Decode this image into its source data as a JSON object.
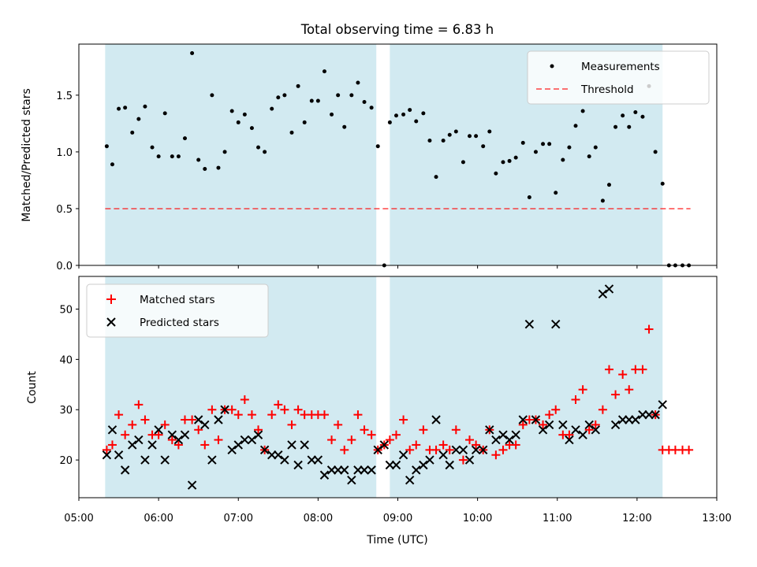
{
  "chart_data": [
    {
      "type": "scatter",
      "title": "Total observing time = 6.83 h",
      "ylabel": "Matched/Predicted stars",
      "xlim": [
        5.0,
        13.0
      ],
      "ylim": [
        0.0,
        1.95
      ],
      "yticks": [
        "0.0",
        "0.5",
        "1.0",
        "1.5"
      ],
      "ytick_values": [
        0.0,
        0.5,
        1.0,
        1.5
      ],
      "shaded_intervals": [
        [
          5.33,
          8.73
        ],
        [
          8.9,
          12.32
        ]
      ],
      "shade_color": "#add8e6",
      "legend": {
        "position": "upper right",
        "entries": [
          "Measurements",
          "Threshold"
        ]
      },
      "threshold": {
        "name": "Threshold",
        "value": 0.5,
        "x_range": [
          5.33,
          12.67
        ],
        "color": "#ff0000"
      },
      "series": [
        {
          "name": "Measurements",
          "marker": "dot",
          "color": "#000000",
          "x": [
            5.35,
            5.42,
            5.5,
            5.58,
            5.67,
            5.75,
            5.83,
            5.92,
            6.0,
            6.08,
            6.17,
            6.25,
            6.33,
            6.42,
            6.5,
            6.58,
            6.67,
            6.75,
            6.83,
            6.92,
            7.0,
            7.08,
            7.17,
            7.25,
            7.33,
            7.42,
            7.5,
            7.58,
            7.67,
            7.75,
            7.83,
            7.92,
            8.0,
            8.08,
            8.17,
            8.25,
            8.33,
            8.42,
            8.5,
            8.58,
            8.67,
            8.75,
            8.83,
            8.9,
            8.98,
            9.07,
            9.15,
            9.23,
            9.32,
            9.4,
            9.48,
            9.57,
            9.65,
            9.73,
            9.82,
            9.9,
            9.98,
            10.07,
            10.15,
            10.23,
            10.32,
            10.4,
            10.48,
            10.57,
            10.65,
            10.73,
            10.82,
            10.9,
            10.98,
            11.07,
            11.15,
            11.23,
            11.32,
            11.4,
            11.48,
            11.57,
            11.65,
            11.73,
            11.82,
            11.9,
            11.98,
            12.07,
            12.15,
            12.23,
            12.32,
            12.4,
            12.48,
            12.57,
            12.65
          ],
          "y": [
            1.05,
            0.89,
            1.38,
            1.39,
            1.17,
            1.29,
            1.4,
            1.04,
            0.96,
            1.34,
            0.96,
            0.96,
            1.12,
            1.87,
            0.93,
            0.85,
            1.5,
            0.86,
            1.0,
            1.36,
            1.26,
            1.33,
            1.21,
            1.04,
            1.0,
            1.38,
            1.48,
            1.5,
            1.17,
            1.58,
            1.26,
            1.45,
            1.45,
            1.71,
            1.33,
            1.5,
            1.22,
            1.5,
            1.61,
            1.44,
            1.39,
            1.05,
            0.0,
            1.26,
            1.32,
            1.33,
            1.37,
            1.27,
            1.34,
            1.1,
            0.78,
            1.1,
            1.15,
            1.18,
            0.91,
            1.14,
            1.14,
            1.05,
            1.18,
            0.81,
            0.91,
            0.92,
            0.95,
            1.08,
            0.6,
            1.0,
            1.07,
            1.07,
            0.64,
            0.93,
            1.04,
            1.23,
            1.36,
            0.96,
            1.04,
            0.57,
            0.71,
            1.22,
            1.32,
            1.22,
            1.35,
            1.31,
            1.58,
            1.0,
            0.72,
            0.0,
            0.0,
            0.0,
            0.0
          ]
        }
      ]
    },
    {
      "type": "scatter",
      "xlabel": "Time (UTC)",
      "ylabel": "Count",
      "xlim": [
        5.0,
        13.0
      ],
      "ylim": [
        12.5,
        56.5
      ],
      "yticks": [
        "20",
        "30",
        "40",
        "50"
      ],
      "ytick_values": [
        20,
        30,
        40,
        50
      ],
      "xticks": [
        "05:00",
        "06:00",
        "07:00",
        "08:00",
        "09:00",
        "10:00",
        "11:00",
        "12:00",
        "13:00"
      ],
      "xtick_values": [
        5,
        6,
        7,
        8,
        9,
        10,
        11,
        12,
        13
      ],
      "shaded_intervals": [
        [
          5.33,
          8.73
        ],
        [
          8.9,
          12.32
        ]
      ],
      "shade_color": "#add8e6",
      "legend": {
        "position": "upper left",
        "entries": [
          "Matched stars",
          "Predicted stars"
        ]
      },
      "series": [
        {
          "name": "Matched stars",
          "marker": "plus",
          "color": "#ff0000",
          "x": [
            5.35,
            5.42,
            5.5,
            5.58,
            5.67,
            5.75,
            5.83,
            5.92,
            6.0,
            6.08,
            6.17,
            6.25,
            6.33,
            6.42,
            6.5,
            6.58,
            6.67,
            6.75,
            6.83,
            6.92,
            7.0,
            7.08,
            7.17,
            7.25,
            7.33,
            7.42,
            7.5,
            7.58,
            7.67,
            7.75,
            7.83,
            7.92,
            8.0,
            8.08,
            8.17,
            8.25,
            8.33,
            8.42,
            8.5,
            8.58,
            8.67,
            8.75,
            8.83,
            8.9,
            8.98,
            9.07,
            9.15,
            9.23,
            9.32,
            9.4,
            9.48,
            9.57,
            9.65,
            9.73,
            9.82,
            9.9,
            9.98,
            10.07,
            10.15,
            10.23,
            10.32,
            10.4,
            10.48,
            10.57,
            10.65,
            10.73,
            10.82,
            10.9,
            10.98,
            11.07,
            11.15,
            11.23,
            11.32,
            11.4,
            11.48,
            11.57,
            11.65,
            11.73,
            11.82,
            11.9,
            11.98,
            12.07,
            12.15,
            12.23,
            12.32,
            12.4,
            12.48,
            12.57,
            12.65
          ],
          "y": [
            22,
            23,
            29,
            25,
            27,
            31,
            28,
            25,
            25,
            27,
            24,
            23,
            28,
            28,
            26,
            23,
            30,
            24,
            30,
            30,
            29,
            32,
            29,
            26,
            22,
            29,
            31,
            30,
            27,
            30,
            29,
            29,
            29,
            29,
            24,
            27,
            22,
            24,
            29,
            26,
            25,
            22,
            23,
            24,
            25,
            28,
            22,
            23,
            26,
            22,
            22,
            23,
            22,
            26,
            20,
            24,
            23,
            22,
            26,
            21,
            22,
            23,
            23,
            27,
            28,
            28,
            27,
            29,
            30,
            25,
            25,
            32,
            34,
            26,
            27,
            30,
            38,
            33,
            37,
            34,
            38,
            38,
            46,
            29,
            22,
            22,
            22,
            22,
            22
          ]
        },
        {
          "name": "Predicted stars",
          "marker": "x",
          "color": "#000000",
          "x": [
            5.35,
            5.42,
            5.5,
            5.58,
            5.67,
            5.75,
            5.83,
            5.92,
            6.0,
            6.08,
            6.17,
            6.25,
            6.33,
            6.42,
            6.5,
            6.58,
            6.67,
            6.75,
            6.83,
            6.92,
            7.0,
            7.08,
            7.17,
            7.25,
            7.33,
            7.42,
            7.5,
            7.58,
            7.67,
            7.75,
            7.83,
            7.92,
            8.0,
            8.08,
            8.17,
            8.25,
            8.33,
            8.42,
            8.5,
            8.58,
            8.67,
            8.75,
            8.83,
            8.9,
            8.98,
            9.07,
            9.15,
            9.23,
            9.32,
            9.4,
            9.48,
            9.57,
            9.65,
            9.73,
            9.82,
            9.9,
            9.98,
            10.07,
            10.15,
            10.23,
            10.32,
            10.4,
            10.48,
            10.57,
            10.65,
            10.73,
            10.82,
            10.9,
            10.98,
            11.07,
            11.15,
            11.23,
            11.32,
            11.4,
            11.48,
            11.57,
            11.65,
            11.73,
            11.82,
            11.9,
            11.98,
            12.07,
            12.15,
            12.23,
            12.32
          ],
          "y": [
            21,
            26,
            21,
            18,
            23,
            24,
            20,
            23,
            26,
            20,
            25,
            24,
            25,
            15,
            28,
            27,
            20,
            28,
            30,
            22,
            23,
            24,
            24,
            25,
            22,
            21,
            21,
            20,
            23,
            19,
            23,
            20,
            20,
            17,
            18,
            18,
            18,
            16,
            18,
            18,
            18,
            22,
            23,
            19,
            19,
            21,
            16,
            18,
            19,
            20,
            28,
            21,
            19,
            22,
            22,
            20,
            22,
            22,
            26,
            24,
            25,
            24,
            25,
            28,
            47,
            28,
            26,
            27,
            47,
            27,
            24,
            26,
            25,
            27,
            26,
            53,
            54,
            27,
            28,
            28,
            28,
            29,
            29,
            29,
            31
          ]
        }
      ]
    }
  ]
}
